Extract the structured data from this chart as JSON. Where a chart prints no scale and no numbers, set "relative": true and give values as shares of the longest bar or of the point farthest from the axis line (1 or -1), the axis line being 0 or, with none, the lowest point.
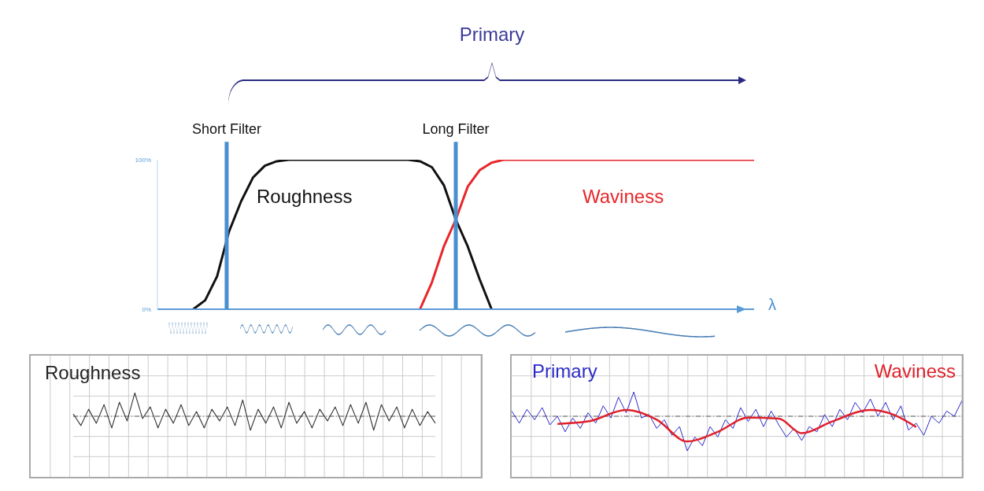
{
  "chart_data": [
    {
      "type": "line",
      "xlabel": "λ",
      "ylim": [
        0,
        100
      ],
      "yticks": [
        {
          "value": 0,
          "label": "0%"
        },
        {
          "value": 100,
          "label": "100%"
        }
      ],
      "annotations": [
        "Primary"
      ],
      "categories": [
        null,
        null,
        null,
        null,
        null,
        null,
        null,
        null,
        null,
        null,
        null,
        null,
        null,
        null,
        null,
        null,
        null,
        null,
        null,
        null,
        null,
        null,
        null,
        null,
        null,
        null,
        null,
        null,
        null,
        null,
        null,
        null,
        null,
        null,
        null,
        null,
        null,
        null,
        null,
        null,
        null,
        null,
        null,
        null,
        null,
        null,
        null,
        null,
        null,
        null,
        null
      ],
      "ref_lines": [
        {
          "axis": "x",
          "label": "Short Filter",
          "color": "#4a90d0"
        },
        {
          "axis": "x",
          "label": "Long Filter",
          "color": "#4a90d0"
        }
      ],
      "series": [
        {
          "name": "Roughness",
          "color": "#111111",
          "values": [
            null,
            null,
            null,
            0,
            6,
            22,
            52,
            72,
            88,
            96,
            99,
            100,
            100,
            100,
            100,
            100,
            100,
            100,
            100,
            100,
            100,
            100,
            99,
            95,
            83,
            60,
            42,
            20,
            0,
            null,
            null,
            null,
            null,
            null,
            null,
            null,
            null,
            null,
            null,
            null,
            null,
            null,
            null,
            null,
            null,
            null,
            null,
            null,
            null,
            null,
            null
          ]
        },
        {
          "name": "Waviness",
          "color": "#e8262a",
          "values": [
            null,
            null,
            null,
            null,
            null,
            null,
            null,
            null,
            null,
            null,
            null,
            null,
            null,
            null,
            null,
            null,
            null,
            null,
            null,
            null,
            null,
            null,
            0,
            18,
            42,
            60,
            82,
            93,
            98,
            100,
            100,
            100,
            100,
            100,
            100,
            100,
            100,
            100,
            100,
            100,
            100,
            100,
            100,
            100,
            100,
            100,
            100,
            100,
            100,
            100,
            100
          ]
        }
      ]
    },
    {
      "type": "line",
      "relative": true,
      "title": "Roughness",
      "grid": true,
      "categories": [
        null,
        null,
        null,
        null,
        null,
        null,
        null,
        null,
        null,
        null,
        null,
        null,
        null,
        null,
        null,
        null,
        null,
        null,
        null,
        null,
        null,
        null,
        null,
        null,
        null,
        null,
        null,
        null,
        null,
        null,
        null,
        null,
        null,
        null,
        null,
        null,
        null,
        null,
        null,
        null,
        null,
        null,
        null,
        null,
        null,
        null,
        null,
        null
      ],
      "ref_lines": [
        {
          "axis": "y",
          "value": 0,
          "color": "#666666",
          "line_style": "dashed"
        }
      ],
      "series": [
        {
          "color": "#333333",
          "values": [
            0.1,
            -0.4,
            0.3,
            -0.3,
            0.5,
            -0.5,
            0.6,
            -0.2,
            1,
            -0.1,
            0.4,
            -0.5,
            0.3,
            -0.3,
            0.5,
            -0.4,
            0.2,
            -0.5,
            0.3,
            -0.2,
            0.4,
            -0.4,
            0.7,
            -0.6,
            0.3,
            -0.3,
            0.4,
            -0.5,
            0.6,
            -0.3,
            0.2,
            -0.5,
            0.3,
            -0.2,
            0.4,
            -0.4,
            0.5,
            -0.3,
            0.6,
            -0.6,
            0.5,
            -0.2,
            0.4,
            -0.5,
            0.3,
            -0.4,
            0.2,
            -0.3
          ]
        }
      ]
    },
    {
      "type": "line",
      "relative": true,
      "grid": true,
      "categories": [
        null,
        null,
        null,
        null,
        null,
        null,
        null,
        null,
        null,
        null,
        null,
        null,
        null,
        null,
        null,
        null,
        null,
        null,
        null,
        null,
        null,
        null,
        null,
        null,
        null,
        null,
        null,
        null,
        null,
        null,
        null,
        null,
        null,
        null,
        null,
        null,
        null,
        null,
        null,
        null,
        null,
        null,
        null,
        null,
        null,
        null,
        null,
        null,
        null,
        null,
        null,
        null,
        null,
        null,
        null,
        null,
        null,
        null,
        null,
        null
      ],
      "ref_lines": [
        {
          "axis": "y",
          "value": 0,
          "color": "#666666",
          "line_style": "dashed"
        }
      ],
      "series": [
        {
          "name": "Primary",
          "color": "#2b2bc8",
          "values": [
            0.15,
            -0.2,
            0.2,
            -0.1,
            0.25,
            -0.25,
            0,
            -0.45,
            -0.05,
            -0.35,
            0.1,
            -0.2,
            0.3,
            -0.05,
            0.55,
            0.1,
            0.7,
            -0.05,
            0.05,
            -0.35,
            -0.1,
            -0.55,
            -0.3,
            -1,
            -0.6,
            -0.85,
            -0.3,
            -0.6,
            -0.1,
            -0.35,
            0.25,
            -0.15,
            0.2,
            -0.3,
            0.15,
            -0.25,
            -0.6,
            -0.35,
            -0.7,
            -0.3,
            -0.45,
            0.05,
            -0.3,
            0.2,
            -0.1,
            0.4,
            0.1,
            0.5,
            0,
            0.4,
            -0.1,
            0.3,
            -0.4,
            -0.2,
            -0.55,
            0,
            -0.2,
            0.15,
            0,
            0.45
          ]
        },
        {
          "name": "Waviness",
          "color": "#e0202a",
          "values": [
            null,
            null,
            null,
            null,
            null,
            null,
            -0.22,
            null,
            null,
            null,
            -0.15,
            null,
            null,
            null,
            null,
            0.18,
            null,
            null,
            null,
            -0.1,
            null,
            null,
            null,
            -0.73,
            null,
            null,
            null,
            -0.45,
            null,
            null,
            null,
            -0.04,
            null,
            null,
            null,
            -0.07,
            null,
            null,
            -0.49,
            null,
            null,
            null,
            -0.15,
            null,
            null,
            null,
            null,
            0.18,
            null,
            null,
            0.05,
            null,
            null,
            -0.31,
            null,
            null,
            null,
            null,
            null,
            null
          ]
        }
      ]
    }
  ]
}
